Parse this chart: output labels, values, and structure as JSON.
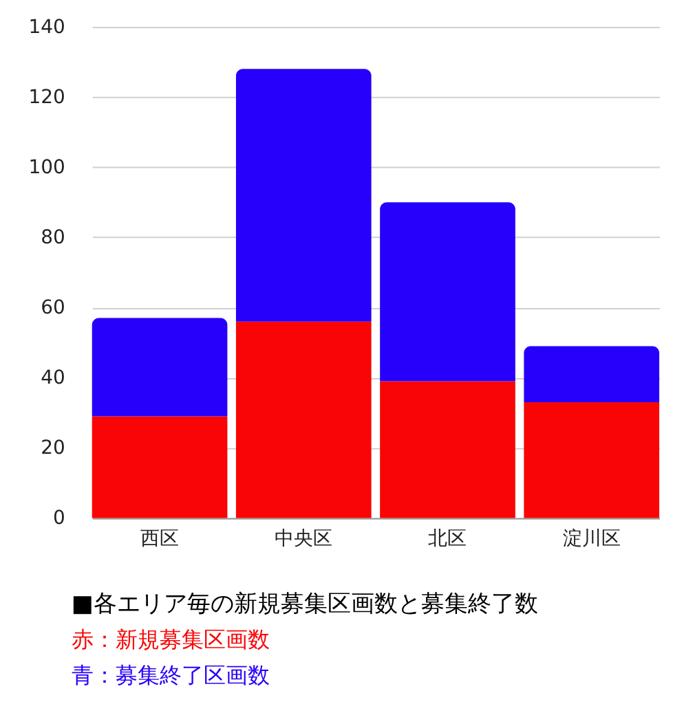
{
  "chart_data": {
    "type": "bar",
    "stacked": true,
    "title": "■各エリア毎の新規募集区画数と募集終了数",
    "categories": [
      "西区",
      "中央区",
      "北区",
      "淀川区"
    ],
    "series": [
      {
        "name": "赤：新規募集区画数",
        "color": "#fa0505",
        "values": [
          29,
          56,
          39,
          33
        ]
      },
      {
        "name": "青：募集終了区画数",
        "color": "#2600fa",
        "values": [
          28,
          72,
          51,
          16
        ]
      }
    ],
    "ylim": [
      0,
      140
    ],
    "yticks": [
      0,
      20,
      40,
      60,
      80,
      100,
      120,
      140
    ],
    "grid": "y"
  }
}
